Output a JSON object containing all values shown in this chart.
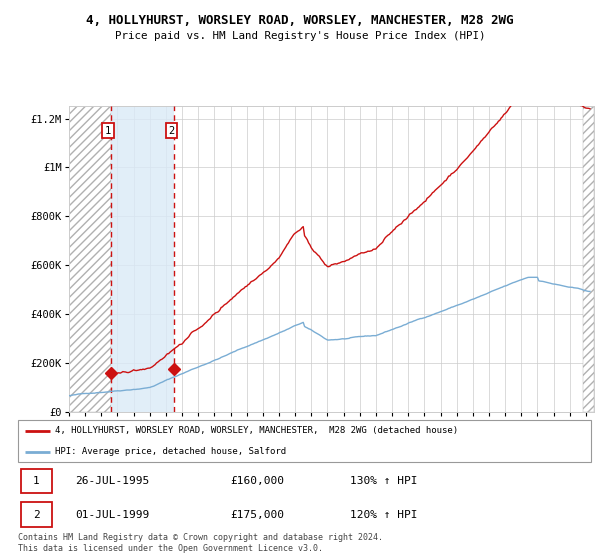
{
  "title": "4, HOLLYHURST, WORSLEY ROAD, WORSLEY, MANCHESTER, M28 2WG",
  "subtitle": "Price paid vs. HM Land Registry's House Price Index (HPI)",
  "legend_line1": "4, HOLLYHURST, WORSLEY ROAD, WORSLEY, MANCHESTER,  M28 2WG (detached house)",
  "legend_line2": "HPI: Average price, detached house, Salford",
  "footer": "Contains HM Land Registry data © Crown copyright and database right 2024.\nThis data is licensed under the Open Government Licence v3.0.",
  "purchase1_date": "26-JUL-1995",
  "purchase1_price": 160000,
  "purchase1_hpi_label": "130% ↑ HPI",
  "purchase2_date": "01-JUL-1999",
  "purchase2_price": 175000,
  "purchase2_hpi_label": "120% ↑ HPI",
  "hpi_color": "#7aadd4",
  "price_color": "#cc1111",
  "shade_color": "#daeaf7",
  "xmin": 1993.0,
  "xmax": 2025.5,
  "ymin": 0,
  "ymax": 1250000,
  "yticks": [
    0,
    200000,
    400000,
    600000,
    800000,
    1000000,
    1200000
  ],
  "ytick_labels": [
    "£0",
    "£200K",
    "£400K",
    "£600K",
    "£800K",
    "£1M",
    "£1.2M"
  ],
  "marker1_x": 1995.57,
  "marker1_y": 160000,
  "marker2_x": 1999.5,
  "marker2_y": 175000,
  "hatch_end_x": 1995.57,
  "hatch_start_x2": 2024.8
}
